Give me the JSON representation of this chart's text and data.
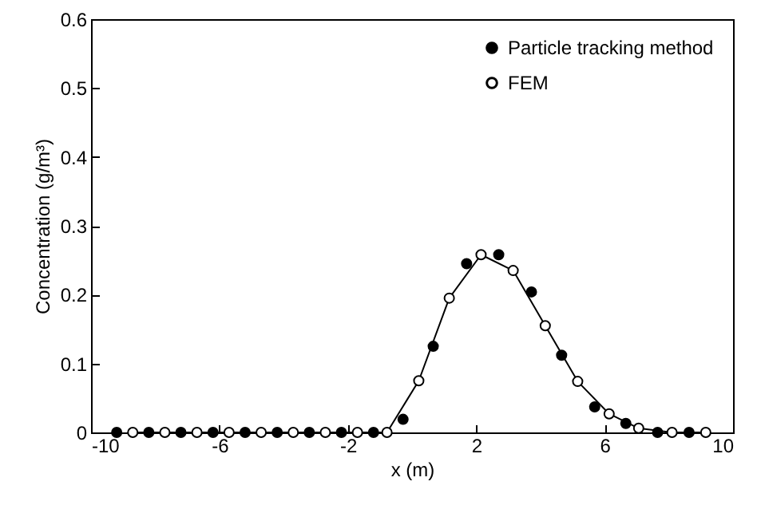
{
  "chart_data": {
    "type": "scatter",
    "xlabel": "x (m)",
    "ylabel": "Concentration (g/m³)",
    "xlim": [
      -10,
      10
    ],
    "xticks": [
      -10,
      -6,
      -2,
      2,
      6,
      10
    ],
    "ylim": [
      0,
      0.6
    ],
    "yticks": [
      0,
      0.1,
      0.2,
      0.3,
      0.4,
      0.5,
      0.6
    ],
    "grid": false,
    "legend": "top right",
    "marker": "circle",
    "series": [
      {
        "name": "Particle tracking method",
        "color": "#000000",
        "x": [
          -9.2,
          -8.2,
          -7.2,
          -6.2,
          -5.2,
          -4.2,
          -3.2,
          -2.2,
          -1.2,
          -0.28,
          0.66,
          1.7,
          2.7,
          3.72,
          4.66,
          5.69,
          6.66,
          7.65,
          8.63
        ],
        "values": [
          0,
          0,
          0,
          0,
          0,
          0,
          0,
          0,
          0,
          0.019,
          0.125,
          0.245,
          0.258,
          0.204,
          0.112,
          0.037,
          0.013,
          0,
          0
        ]
      },
      {
        "name": "FEM",
        "type": "line",
        "color": "#000000",
        "x": [
          -8.7,
          -7.7,
          -6.7,
          -5.7,
          -4.7,
          -3.7,
          -2.7,
          -1.7,
          -0.78,
          0.21,
          1.16,
          2.15,
          3.15,
          4.15,
          5.16,
          6.14,
          7.06,
          8.1,
          9.15
        ],
        "values": [
          0,
          0,
          0,
          0,
          0,
          0,
          0,
          0,
          0,
          0.075,
          0.195,
          0.258,
          0.235,
          0.155,
          0.074,
          0.027,
          0.006,
          0,
          0
        ]
      }
    ]
  }
}
